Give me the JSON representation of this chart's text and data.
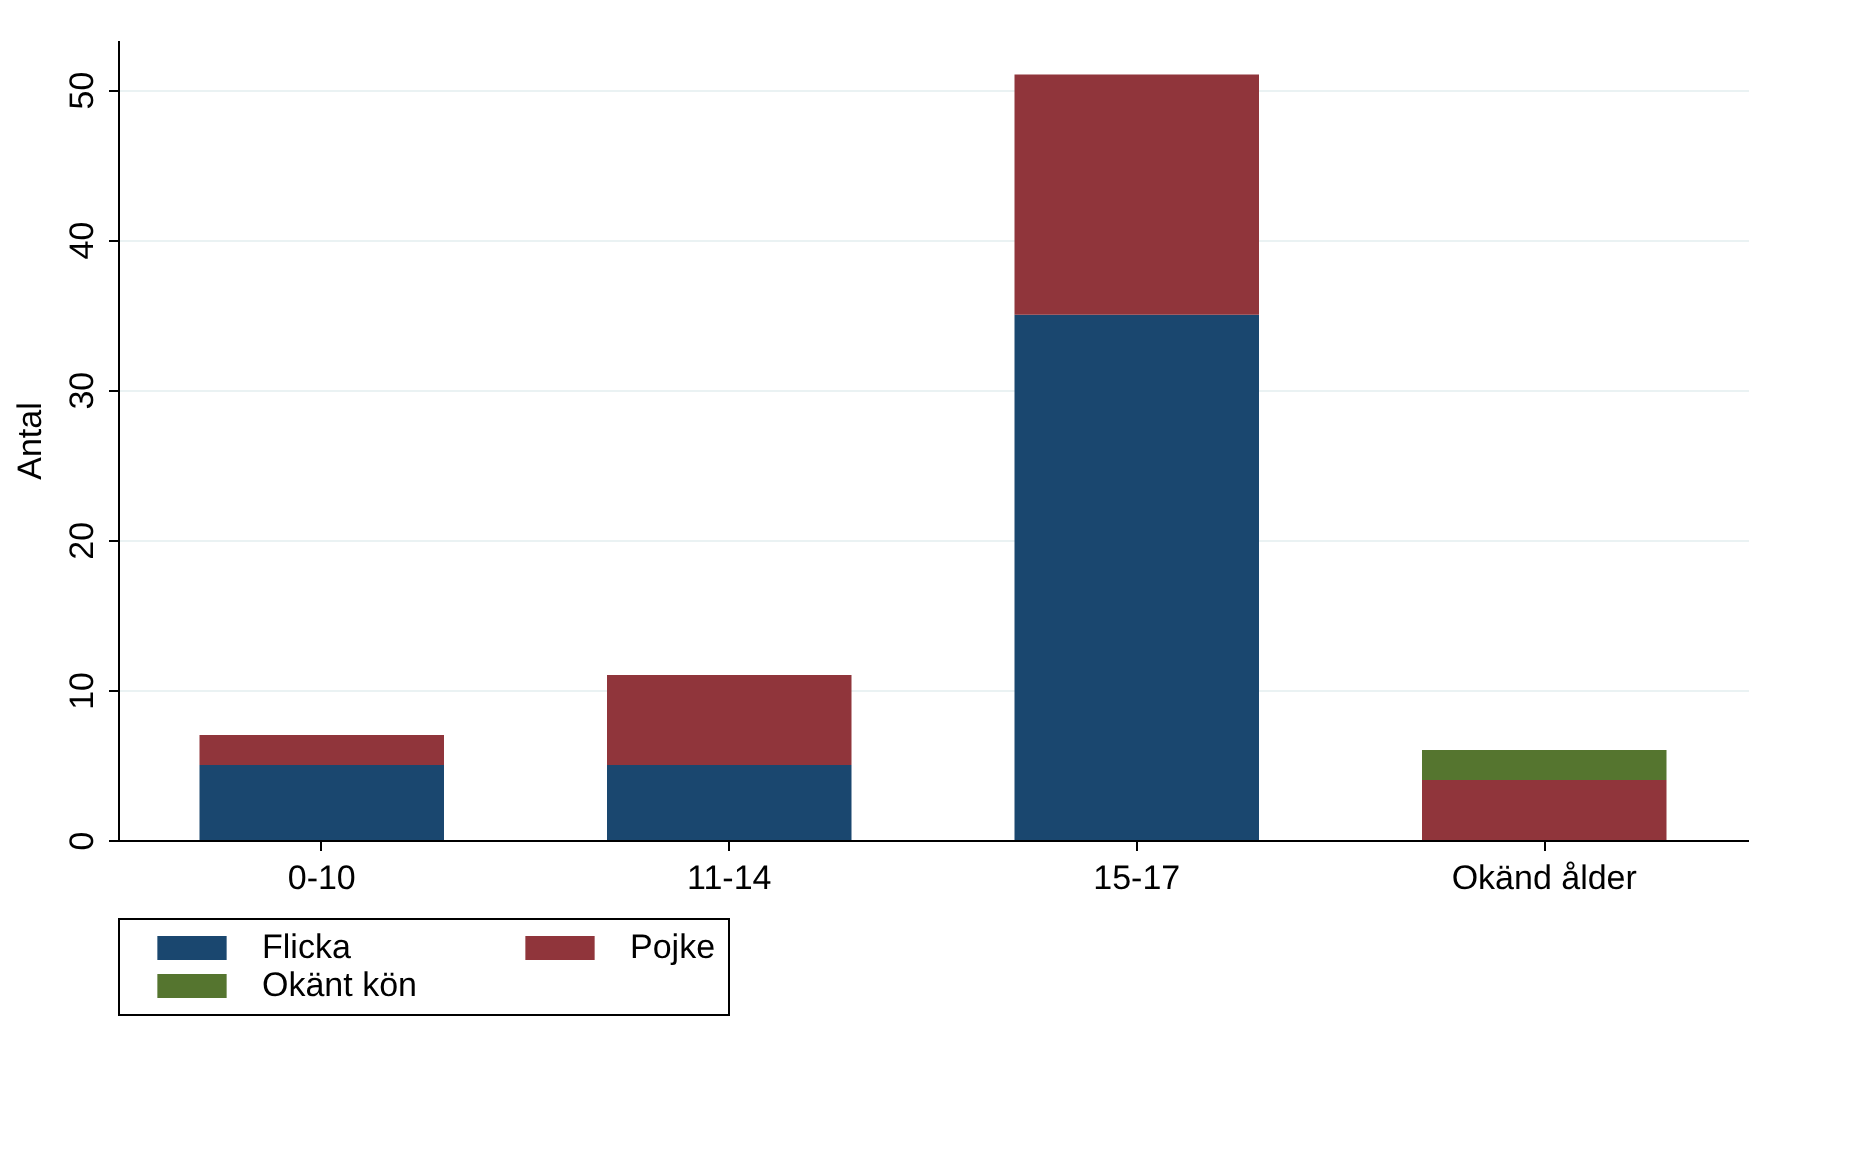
{
  "chart_data": {
    "type": "bar",
    "stacked": true,
    "ylabel": "Antal",
    "categories": [
      "0-10",
      "11-14",
      "15-17",
      "Okänd ålder"
    ],
    "series": [
      {
        "name": "Flicka",
        "color": "#1a476f",
        "values": [
          5,
          5,
          35,
          null
        ]
      },
      {
        "name": "Pojke",
        "color": "#90353b",
        "values": [
          2,
          6,
          16,
          4
        ]
      },
      {
        "name": "Okänt kön",
        "color": "#55752f",
        "values": [
          null,
          null,
          null,
          2
        ]
      }
    ],
    "ylim": [
      0,
      53.3
    ],
    "yticks": [
      0,
      10,
      20,
      30,
      40,
      50
    ],
    "grid": "y",
    "legend": "bottom"
  }
}
